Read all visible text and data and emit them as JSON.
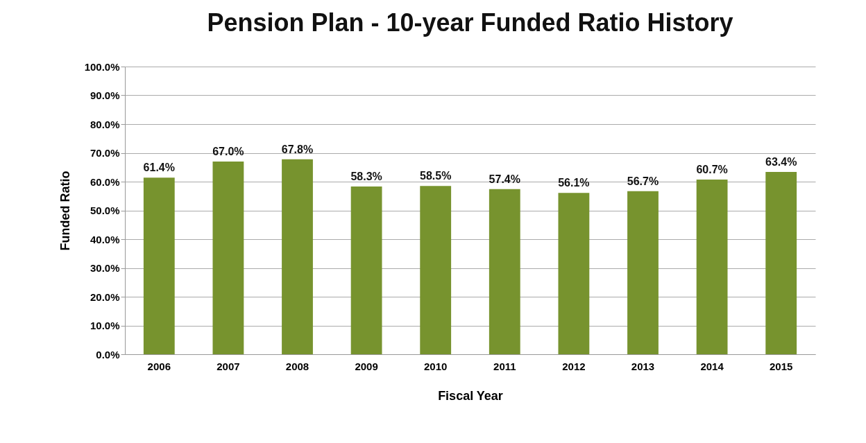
{
  "chart_data": {
    "type": "bar",
    "title": "Pension Plan - 10-year Funded Ratio History",
    "xlabel": "Fiscal Year",
    "ylabel": "Funded Ratio",
    "categories": [
      "2006",
      "2007",
      "2008",
      "2009",
      "2010",
      "2011",
      "2012",
      "2013",
      "2014",
      "2015"
    ],
    "values": [
      61.4,
      67.0,
      67.8,
      58.3,
      58.5,
      57.4,
      56.1,
      56.7,
      60.7,
      63.4
    ],
    "value_labels": [
      "61.4%",
      "67.0%",
      "67.8%",
      "58.3%",
      "58.5%",
      "57.4%",
      "56.1%",
      "56.7%",
      "60.7%",
      "63.4%"
    ],
    "color": "#77932e",
    "ylim": [
      0,
      100
    ],
    "yticks": [
      {
        "value": 0,
        "label": "0.0%"
      },
      {
        "value": 10,
        "label": "10.0%"
      },
      {
        "value": 20,
        "label": "20.0%"
      },
      {
        "value": 30,
        "label": "30.0%"
      },
      {
        "value": 40,
        "label": "40.0%"
      },
      {
        "value": 50,
        "label": "50.0%"
      },
      {
        "value": 60,
        "label": "60.0%"
      },
      {
        "value": 70,
        "label": "70.0%"
      },
      {
        "value": 80,
        "label": "80.0%"
      },
      {
        "value": 90,
        "label": "90.0%"
      },
      {
        "value": 100,
        "label": "100.0%"
      }
    ],
    "grid": "y"
  }
}
